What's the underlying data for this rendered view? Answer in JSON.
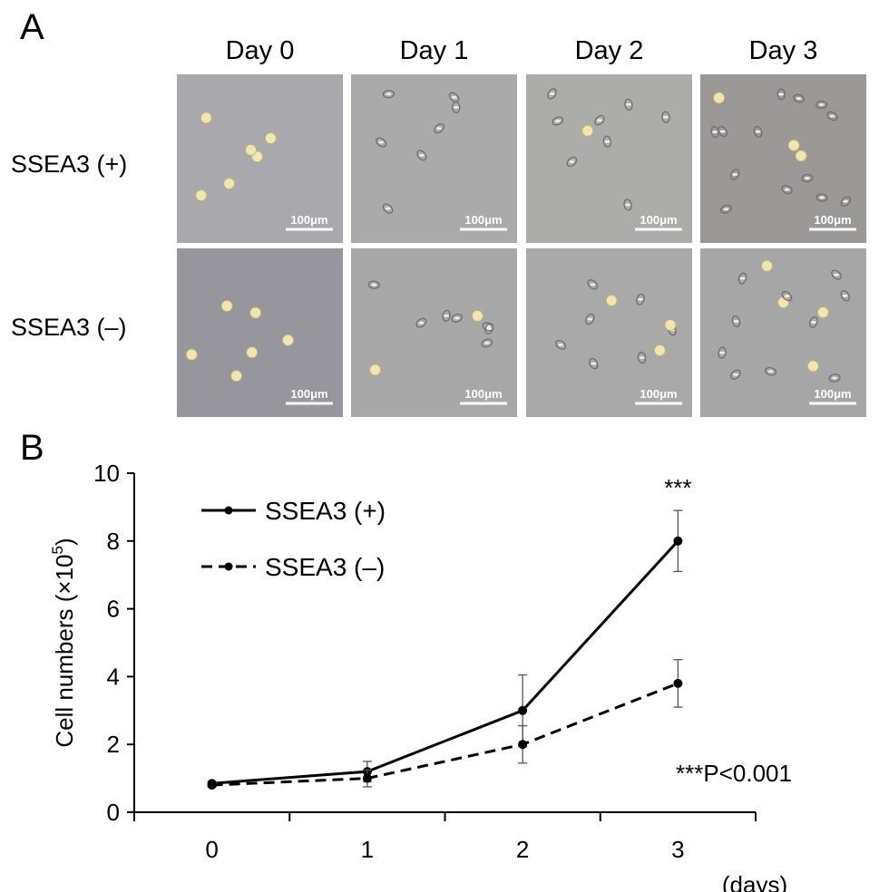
{
  "panel_a": {
    "letter": "A",
    "column_labels": [
      "Day 0",
      "Day 1",
      "Day 2",
      "Day 3"
    ],
    "row_labels": [
      "SSEA3 (+)",
      "SSEA3 (–)"
    ],
    "scale_bar_label": "100μm"
  },
  "panel_b": {
    "letter": "B",
    "significance": "***",
    "p_value_note": "***P<0.001"
  },
  "chart_data": {
    "type": "line",
    "x": [
      0,
      1,
      2,
      3
    ],
    "xlabel": "(days)",
    "ylabel": "Cell numbers (×10⁵)",
    "ylabel_main": "Cell numbers (×10",
    "ylabel_sup": "5",
    "ylabel_close": ")",
    "xlim": [
      -0.5,
      3.5
    ],
    "ylim": [
      0,
      10
    ],
    "yticks": [
      0,
      2,
      4,
      6,
      8,
      10
    ],
    "xticks": [
      0,
      1,
      2,
      3
    ],
    "legend_position": "top-left",
    "series": [
      {
        "name": "SSEA3 (+)",
        "style": "solid",
        "values": [
          0.85,
          1.2,
          3.0,
          8.0
        ],
        "errors": [
          0.05,
          0.3,
          1.05,
          0.9
        ]
      },
      {
        "name": "SSEA3 (–)",
        "style": "dashed",
        "values": [
          0.8,
          1.0,
          2.0,
          3.8
        ],
        "errors": [
          0.05,
          0.25,
          0.55,
          0.7
        ]
      }
    ]
  }
}
